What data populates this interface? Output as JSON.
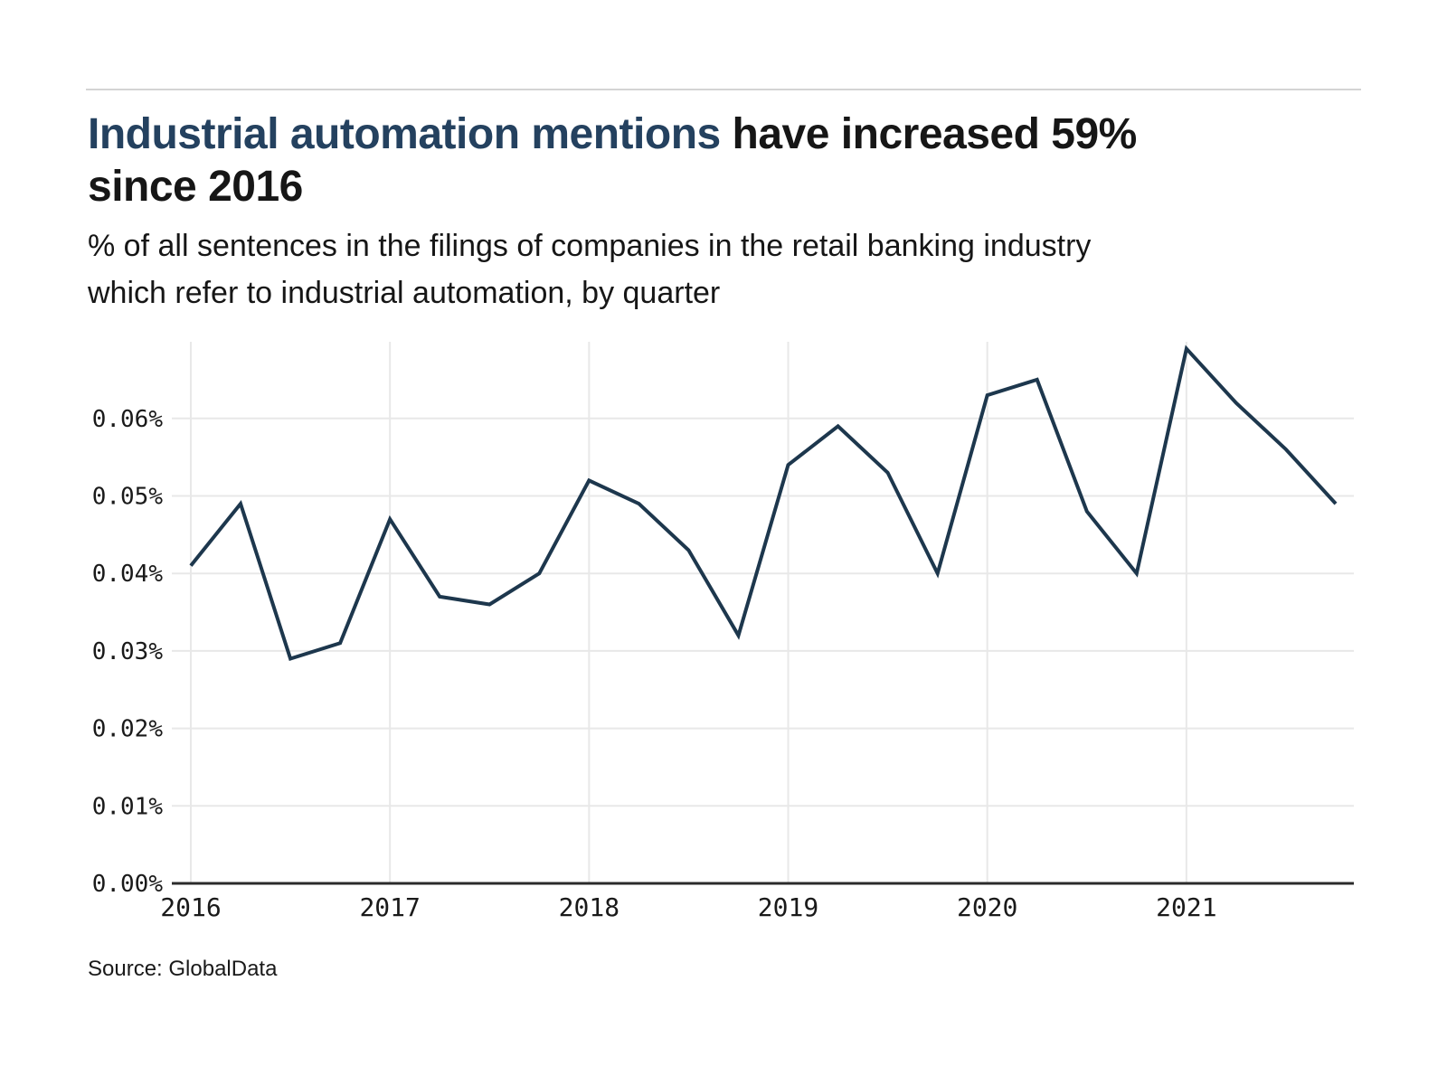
{
  "header": {
    "title_highlight": "Industrial automation mentions",
    "title_rest": " have increased 59% since 2016",
    "subtitle": "% of all sentences in the filings of companies in the retail banking industry which refer to industrial automation, by quarter"
  },
  "footer": {
    "source": "Source: GlobalData"
  },
  "colors": {
    "background": "#ffffff",
    "text": "#161616",
    "title_highlight": "#24415f",
    "line": "#1d374d",
    "grid": "#e8e8e8",
    "axis": "#2b2b2b",
    "divider": "#d4d4d4"
  },
  "chart_data": {
    "type": "line",
    "title": "Industrial automation mentions have increased 59% since 2016",
    "subtitle": "% of all sentences in the filings of companies in the retail banking industry which refer to industrial automation, by quarter",
    "xlabel": "",
    "ylabel": "",
    "x_tick_labels": [
      "2016",
      "2017",
      "2018",
      "2019",
      "2020",
      "2021"
    ],
    "y_tick_labels": [
      "0.00%",
      "0.01%",
      "0.02%",
      "0.03%",
      "0.04%",
      "0.05%",
      "0.06%"
    ],
    "y_tick_step": 0.01,
    "ylim": [
      0,
      0.07
    ],
    "grid": true,
    "legend_position": "none",
    "points_per_year": 4,
    "series": [
      {
        "name": "Industrial automation mentions (% of all sentences)",
        "x": [
          "2016 Q1",
          "2016 Q2",
          "2016 Q3",
          "2016 Q4",
          "2017 Q1",
          "2017 Q2",
          "2017 Q3",
          "2017 Q4",
          "2018 Q1",
          "2018 Q2",
          "2018 Q3",
          "2018 Q4",
          "2019 Q1",
          "2019 Q2",
          "2019 Q3",
          "2019 Q4",
          "2020 Q1",
          "2020 Q2",
          "2020 Q3",
          "2020 Q4",
          "2021 Q1",
          "2021 Q2",
          "2021 Q3",
          "2021 Q4"
        ],
        "values": [
          0.041,
          0.049,
          0.029,
          0.031,
          0.047,
          0.037,
          0.036,
          0.04,
          0.052,
          0.049,
          0.043,
          0.032,
          0.054,
          0.059,
          0.053,
          0.04,
          0.063,
          0.065,
          0.048,
          0.04,
          0.069,
          0.062,
          0.056,
          0.049
        ]
      }
    ],
    "source": "Source: GlobalData"
  }
}
